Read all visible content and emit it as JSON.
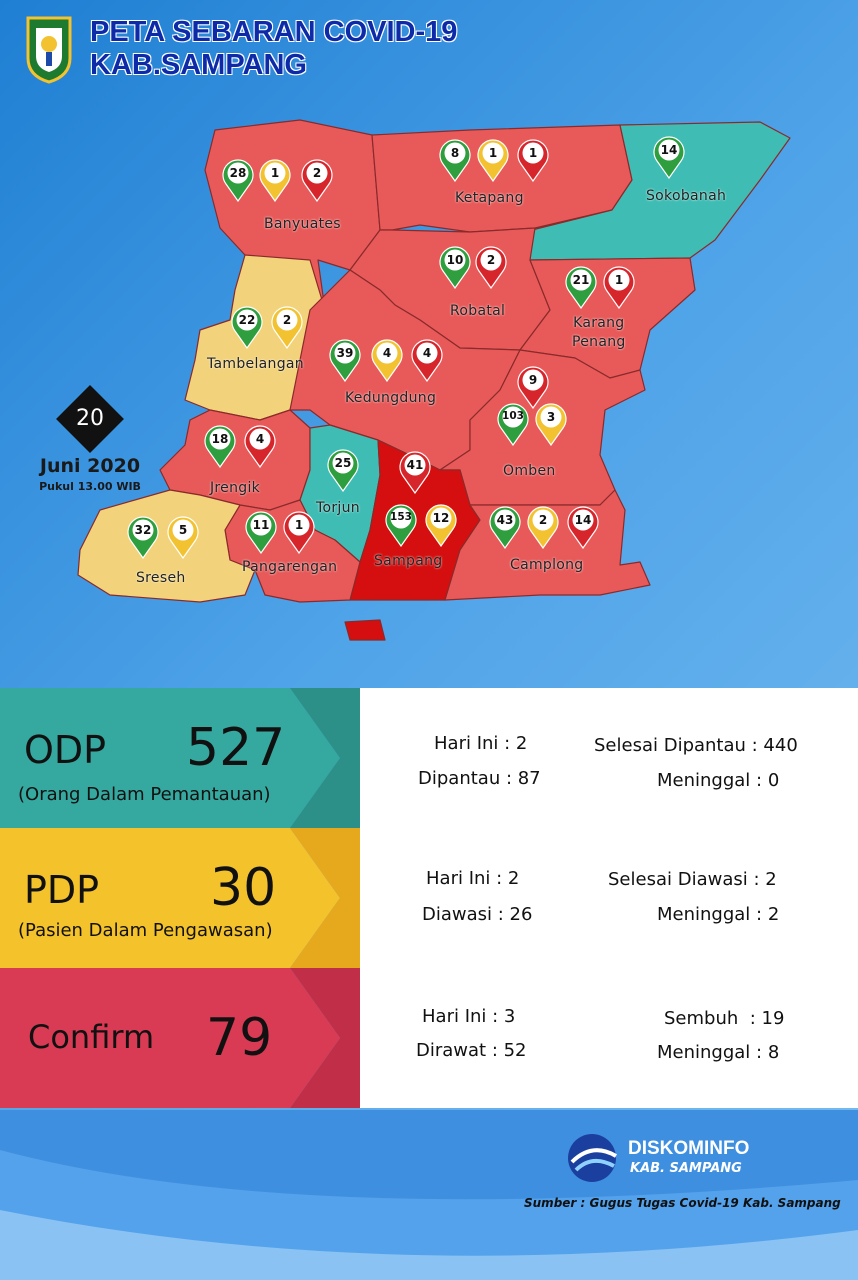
{
  "header": {
    "title_line1": "PETA SEBARAN COVID-19",
    "title_line2": "KAB.SAMPANG"
  },
  "date": {
    "day": "20",
    "month_year": "Juni 2020",
    "time": "Pukul 13.00 WIB"
  },
  "colors": {
    "green_pin": "#2e9e3e",
    "yellow_pin": "#f2c230",
    "red_pin": "#d7262b",
    "odp": "#35a89f",
    "pdp": "#f4c22a",
    "confirm": "#d93a54",
    "map_red": "#e85a5a",
    "map_yellow": "#f2d27a",
    "map_teal": "#3fbdb4",
    "map_darkred": "#d50f0f"
  },
  "districts": [
    {
      "name": "Banyuates",
      "pins": [
        {
          "color": "green",
          "value": "28"
        },
        {
          "color": "yellow",
          "value": "1"
        },
        {
          "color": "red",
          "value": "2"
        }
      ]
    },
    {
      "name": "Ketapang",
      "pins": [
        {
          "color": "green",
          "value": "8"
        },
        {
          "color": "yellow",
          "value": "1"
        },
        {
          "color": "red",
          "value": "1"
        }
      ]
    },
    {
      "name": "Sokobanah",
      "pins": [
        {
          "color": "green",
          "value": "14"
        }
      ]
    },
    {
      "name": "Robatal",
      "pins": [
        {
          "color": "green",
          "value": "10"
        },
        {
          "color": "red",
          "value": "2"
        }
      ]
    },
    {
      "name": "Karang Penang",
      "label_line1": "Karang",
      "label_line2": "Penang",
      "pins": [
        {
          "color": "green",
          "value": "21"
        },
        {
          "color": "red",
          "value": "1"
        }
      ]
    },
    {
      "name": "Tambelangan",
      "pins": [
        {
          "color": "green",
          "value": "22"
        },
        {
          "color": "yellow",
          "value": "2"
        }
      ]
    },
    {
      "name": "Kedungdung",
      "pins": [
        {
          "color": "green",
          "value": "39"
        },
        {
          "color": "yellow",
          "value": "4"
        },
        {
          "color": "red",
          "value": "4"
        }
      ]
    },
    {
      "name": "Omben",
      "pins": [
        {
          "color": "red",
          "value": "9"
        },
        {
          "color": "green",
          "value": "103"
        },
        {
          "color": "yellow",
          "value": "3"
        }
      ]
    },
    {
      "name": "Jrengik",
      "pins": [
        {
          "color": "green",
          "value": "18"
        },
        {
          "color": "red",
          "value": "4"
        }
      ]
    },
    {
      "name": "Torjun",
      "pins": [
        {
          "color": "green",
          "value": "25"
        }
      ]
    },
    {
      "name": "Sampang",
      "pins": [
        {
          "color": "red",
          "value": "41"
        },
        {
          "color": "green",
          "value": "153"
        },
        {
          "color": "yellow",
          "value": "12"
        }
      ]
    },
    {
      "name": "Sreseh",
      "pins": [
        {
          "color": "green",
          "value": "32"
        },
        {
          "color": "yellow",
          "value": "5"
        }
      ]
    },
    {
      "name": "Pangarengan",
      "pins": [
        {
          "color": "green",
          "value": "11"
        },
        {
          "color": "red",
          "value": "1"
        }
      ]
    },
    {
      "name": "Camplong",
      "pins": [
        {
          "color": "green",
          "value": "43"
        },
        {
          "color": "yellow",
          "value": "2"
        },
        {
          "color": "red",
          "value": "14"
        }
      ]
    }
  ],
  "odp": {
    "name": "ODP",
    "total": "527",
    "subtitle": "(Orang Dalam Pemantauan)",
    "s1": "Hari Ini : 2",
    "s2": "Dipantau : 87",
    "s3": "Selesai Dipantau : 440",
    "s4": "Meninggal : 0"
  },
  "pdp": {
    "name": "PDP",
    "total": "30",
    "subtitle": "(Pasien Dalam Pengawasan)",
    "s1": "Hari Ini : 2",
    "s2": "Diawasi : 26",
    "s3": "Selesai Diawasi : 2",
    "s4": "Meninggal : 2"
  },
  "confirm": {
    "name": "Confirm",
    "total": "79",
    "s1": "Hari Ini : 3",
    "s2": "Dirawat : 52",
    "s3": "Sembuh  : 19",
    "s4": "Meninggal : 8"
  },
  "footer": {
    "logo": "DISKOMINFO",
    "logo_sub": "KAB. SAMPANG",
    "source": "Sumber : Gugus Tugas Covid-19 Kab. Sampang"
  }
}
